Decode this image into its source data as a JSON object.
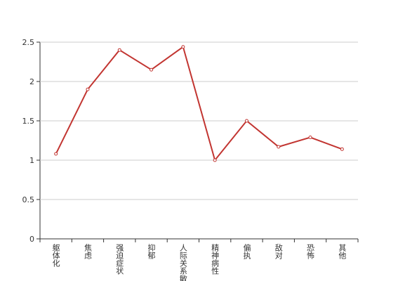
{
  "chart_data": {
    "type": "line",
    "categories": [
      "躯体化",
      "焦虑",
      "强迫症状",
      "抑郁",
      "人际关系敏感",
      "精神病性",
      "偏执",
      "敌对",
      "恐怖",
      "其他"
    ],
    "series": [
      {
        "color": "#c23531",
        "values": [
          1.08,
          1.9,
          2.4,
          2.15,
          2.44,
          1.0,
          1.5,
          1.17,
          1.29,
          1.14
        ]
      }
    ],
    "ylim": [
      0,
      2.5
    ],
    "yticks": [
      0,
      0.5,
      1,
      1.5,
      2,
      2.5
    ],
    "grid": true
  }
}
